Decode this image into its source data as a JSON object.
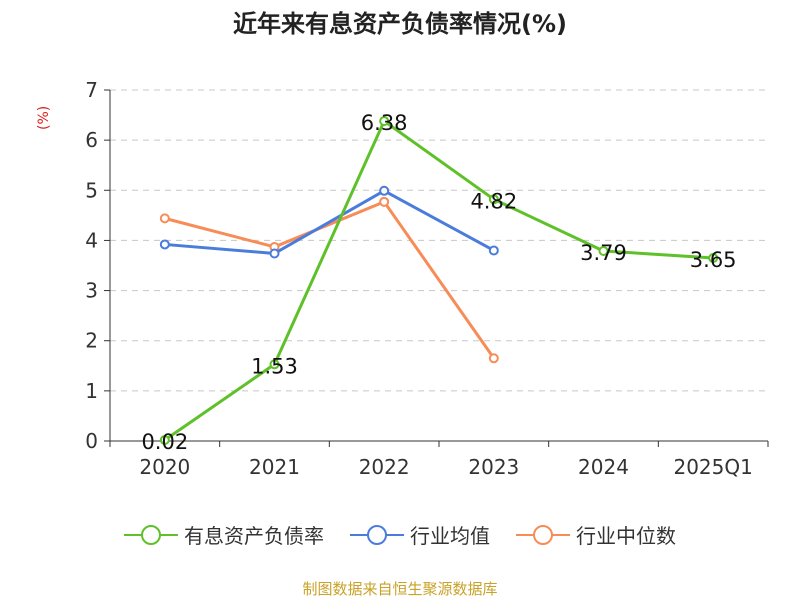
{
  "chart_data": {
    "type": "line",
    "title": "近年来有息资产负债率情况(%)",
    "ylabel": "(%)",
    "categories": [
      "2020",
      "2021",
      "2022",
      "2023",
      "2024",
      "2025Q1"
    ],
    "ylim": [
      0,
      7
    ],
    "yticks": [
      0,
      1,
      2,
      3,
      4,
      5,
      6,
      7
    ],
    "grid": true,
    "legend_position": "bottom",
    "series": [
      {
        "name": "有息资产负债率",
        "color": "#5ec129",
        "values": [
          0.02,
          1.53,
          6.38,
          4.82,
          3.79,
          3.65
        ],
        "labels": [
          "0.02",
          "1.53",
          "6.38",
          "4.82",
          "3.79",
          "3.65"
        ]
      },
      {
        "name": "行业均值",
        "color": "#4a7ddb",
        "values": [
          3.92,
          3.74,
          4.99,
          3.8,
          null,
          null
        ]
      },
      {
        "name": "行业中位数",
        "color": "#f78c57",
        "values": [
          4.44,
          3.87,
          4.77,
          1.65,
          null,
          null
        ]
      }
    ]
  },
  "source": "制图数据来自恒生聚源数据库"
}
